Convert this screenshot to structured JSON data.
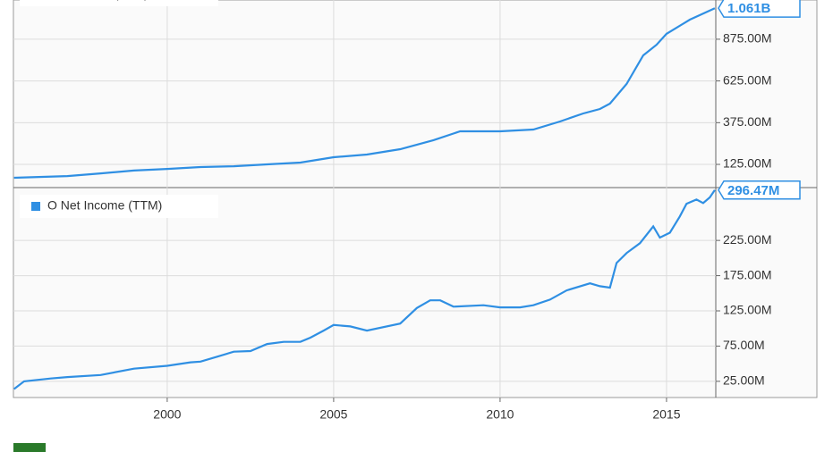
{
  "chart_data": [
    {
      "type": "line",
      "x": [
        1995.4,
        1997,
        1998,
        1999,
        2000,
        2001,
        2002,
        2003,
        2004,
        2004.5,
        2005,
        2006,
        2007,
        2008,
        2008.8,
        2010,
        2011,
        2011.8,
        2012.5,
        2013,
        2013.3,
        2013.8,
        2014.3,
        2014.7,
        2015,
        2015.7,
        2016.45
      ],
      "series": [
        {
          "name": "O Revenue (TTM)",
          "color": "#2f8fe3",
          "values": [
            45,
            55,
            71,
            88,
            98,
            109,
            114,
            125,
            136,
            152,
            168,
            184,
            216,
            270,
            323,
            323,
            334,
            382,
            430,
            457,
            489,
            607,
            778,
            842,
            907,
            992,
            1061
          ],
          "value_labels": [
            null,
            null,
            null,
            null,
            null,
            null,
            null,
            null,
            null,
            null,
            null,
            null,
            null,
            null,
            null,
            null,
            null,
            null,
            null,
            null,
            null,
            null,
            null,
            null,
            null,
            null,
            "1.061B"
          ]
        }
      ],
      "xlim": [
        1995.38,
        2016.48
      ],
      "ylim": [
        -14,
        1110
      ],
      "yticks": [
        {
          "value": 125,
          "label": "125.00M"
        },
        {
          "value": 375,
          "label": "375.00M"
        },
        {
          "value": 625,
          "label": "625.00M"
        },
        {
          "value": 875,
          "label": "875.00M"
        }
      ],
      "grid": true
    },
    {
      "type": "line",
      "x": [
        1995.4,
        1995.7,
        1996.5,
        1997,
        1998,
        1999,
        2000,
        2000.7,
        2001,
        2001.5,
        2002,
        2002.5,
        2003,
        2003.5,
        2004,
        2004.3,
        2004.7,
        2005,
        2005.5,
        2006,
        2007,
        2007.5,
        2007.9,
        2008.2,
        2008.6,
        2009.5,
        2010,
        2010.6,
        2011,
        2011.5,
        2012,
        2012.7,
        2013,
        2013.3,
        2013.5,
        2013.8,
        2014.2,
        2014.6,
        2014.8,
        2015.1,
        2015.4,
        2015.6,
        2015.9,
        2016.1,
        2016.3,
        2016.45
      ],
      "series": [
        {
          "name": "O Net Income (TTM)",
          "color": "#2f8fe3",
          "values": [
            14,
            25,
            29,
            31,
            34,
            43,
            47,
            52,
            53,
            60,
            67,
            68,
            78,
            81,
            81,
            87,
            97,
            105,
            103,
            97,
            107,
            129,
            140,
            140,
            131,
            133,
            130,
            130,
            133,
            141,
            154,
            164,
            160,
            158,
            193,
            207,
            221,
            245,
            229,
            236,
            259,
            277,
            283,
            278,
            286,
            296.47
          ],
          "value_labels": [
            null,
            null,
            null,
            null,
            null,
            null,
            null,
            null,
            null,
            null,
            null,
            null,
            null,
            null,
            null,
            null,
            null,
            null,
            null,
            null,
            null,
            null,
            null,
            null,
            null,
            null,
            null,
            null,
            null,
            null,
            null,
            null,
            null,
            null,
            null,
            null,
            null,
            null,
            null,
            null,
            null,
            null,
            null,
            null,
            null,
            "296.47M"
          ]
        }
      ],
      "xlim": [
        1995.38,
        2016.48
      ],
      "ylim": [
        2,
        300
      ],
      "xticks": [
        2000,
        2005,
        2010,
        2015
      ],
      "yticks": [
        {
          "value": 25,
          "label": "25.00M"
        },
        {
          "value": 75,
          "label": "75.00M"
        },
        {
          "value": 125,
          "label": "125.00M"
        },
        {
          "value": 175,
          "label": "175.00M"
        },
        {
          "value": 225,
          "label": "225.00M"
        }
      ],
      "grid": true
    }
  ]
}
